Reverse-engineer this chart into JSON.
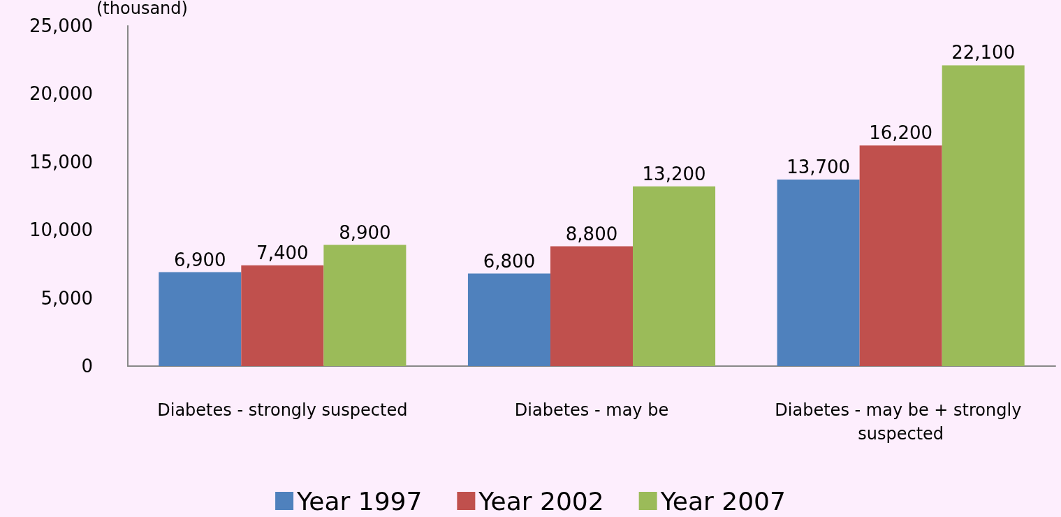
{
  "chart_data": {
    "type": "bar",
    "ylabel": "(thousand)",
    "categories": [
      "Diabetes - strongly suspected",
      "Diabetes - may be",
      "Diabetes - may be + strongly suspected"
    ],
    "series": [
      {
        "name": "Year 1997",
        "color": "#4f81bd",
        "values": [
          6900,
          6800,
          13700
        ],
        "value_labels": [
          "6,900",
          "6,800",
          "13,700"
        ]
      },
      {
        "name": "Year 2002",
        "color": "#c0504d",
        "values": [
          7400,
          8800,
          16200
        ],
        "value_labels": [
          "7,400",
          "8,800",
          "16,200"
        ]
      },
      {
        "name": "Year 2007",
        "color": "#9bbb59",
        "values": [
          8900,
          13200,
          22100
        ],
        "value_labels": [
          "8,900",
          "13,200",
          "22,100"
        ]
      }
    ],
    "ylim": [
      0,
      25000
    ],
    "yticks": [
      {
        "value": 0,
        "label": "0"
      },
      {
        "value": 5000,
        "label": "5,000"
      },
      {
        "value": 10000,
        "label": "10,000"
      },
      {
        "value": 15000,
        "label": "15,000"
      },
      {
        "value": 20000,
        "label": "20,000"
      },
      {
        "value": 25000,
        "label": "25,000"
      }
    ],
    "grid": false,
    "legend": "bottom"
  }
}
